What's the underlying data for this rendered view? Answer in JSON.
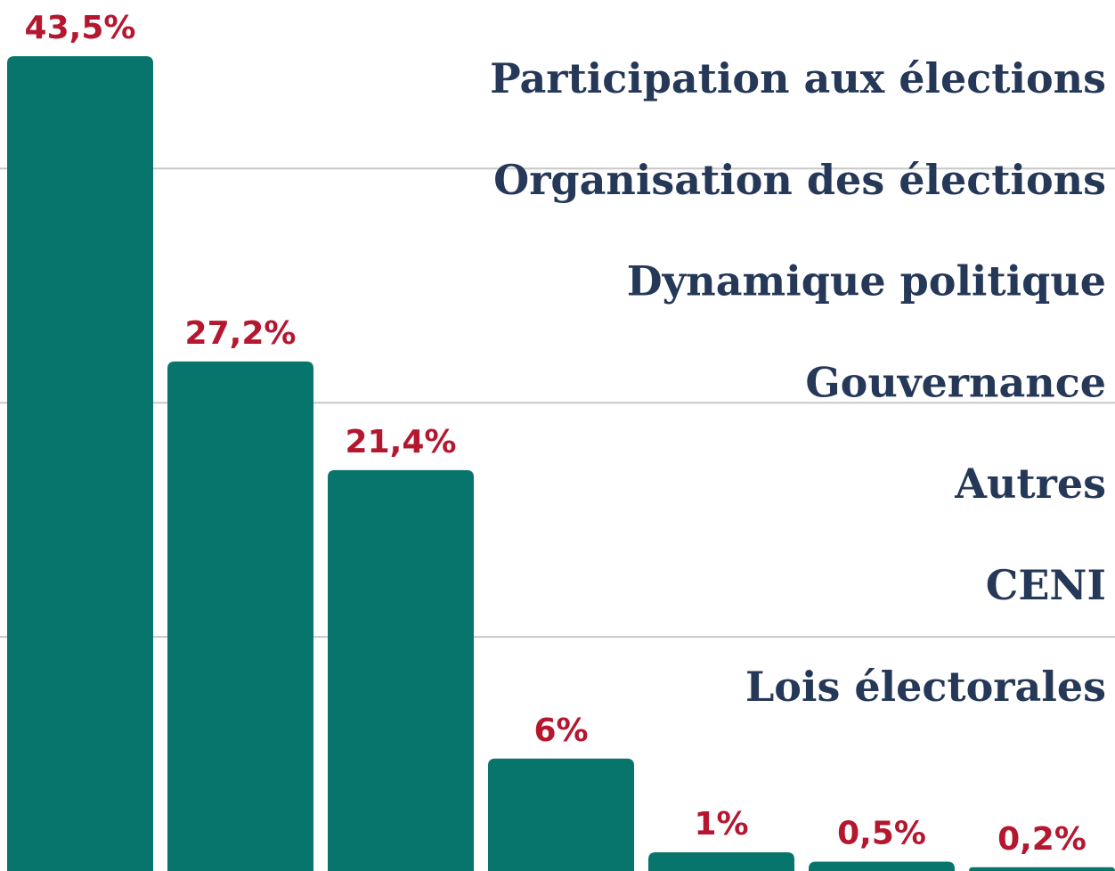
{
  "chart_data": {
    "type": "bar",
    "categories": [
      "Participation aux élections",
      "Organisation des élections",
      "Dynamique politique",
      "Gouvernance",
      "Autres",
      "CENI",
      "Lois électorales"
    ],
    "values": [
      43.5,
      27.2,
      21.4,
      6,
      1,
      0.5,
      0.2
    ],
    "value_labels": [
      "43,5%",
      "27,2%",
      "21,4%",
      "6%",
      "1%",
      "0,5%",
      "0,2%"
    ],
    "color": "#08756d",
    "ylim": [
      0,
      46.5
    ],
    "yticks": [
      12.5,
      25,
      37.5
    ],
    "grid": true
  }
}
